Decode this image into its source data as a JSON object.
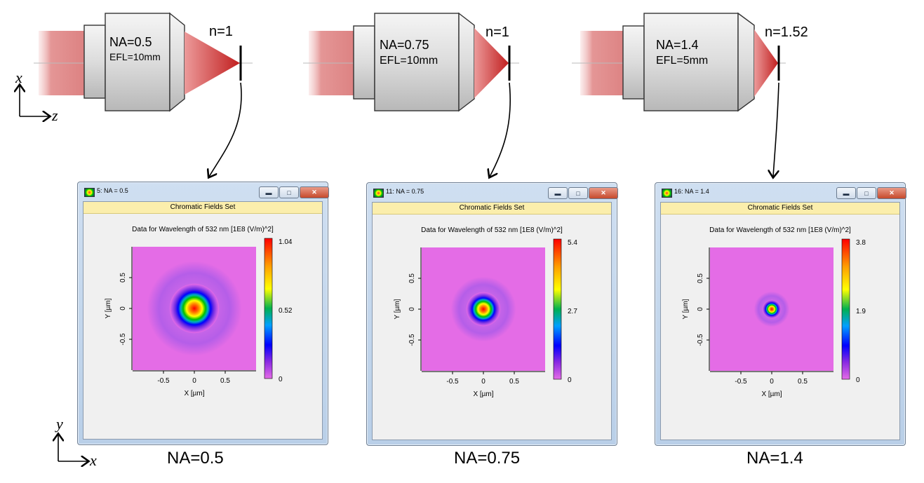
{
  "setups": [
    {
      "na": "NA=0.5",
      "efl": "EFL=10mm",
      "n": "n=1"
    },
    {
      "na": "NA=0.75",
      "efl": "EFL=10mm",
      "n": "n=1"
    },
    {
      "na": "NA=1.4",
      "efl": "EFL=5mm",
      "n": "n=1.52"
    }
  ],
  "axes_top": {
    "x": "x",
    "z": "z"
  },
  "axes_bottom": {
    "y": "y",
    "x": "x"
  },
  "windows": [
    {
      "title": "5: NA = 0.5",
      "header": "Chromatic Fields Set",
      "plot_title": "Data for Wavelength of 532 nm  [1E8 (V/m)^2]",
      "xlabel": "X [µm]",
      "ylabel": "Y [µm]",
      "xticks": [
        "-0.5",
        "0",
        "0.5"
      ],
      "yticks": [
        "0.5",
        "0",
        "-0.5"
      ],
      "colorbar": [
        "1.04",
        "0.52",
        "0"
      ],
      "bottom_label": "NA=0.5",
      "spot_radius_um": 0.32
    },
    {
      "title": "11: NA = 0.75",
      "header": "Chromatic Fields Set",
      "plot_title": "Data for Wavelength of 532 nm  [1E8 (V/m)^2]",
      "xlabel": "X [µm]",
      "ylabel": "Y [µm]",
      "xticks": [
        "-0.5",
        "0",
        "0.5"
      ],
      "yticks": [
        "0.5",
        "0",
        "-0.5"
      ],
      "colorbar": [
        "5.4",
        "2.7",
        "0"
      ],
      "bottom_label": "NA=0.75",
      "spot_radius_um": 0.22
    },
    {
      "title": "16: NA = 1.4",
      "header": "Chromatic Fields Set",
      "plot_title": "Data for Wavelength of 532 nm  [1E8 (V/m)^2]",
      "xlabel": "X [µm]",
      "ylabel": "Y [µm]",
      "xticks": [
        "-0.5",
        "0",
        "0.5"
      ],
      "yticks": [
        "0.5",
        "0",
        "-0.5"
      ],
      "colorbar": [
        "3.8",
        "1.9",
        "0"
      ],
      "bottom_label": "NA=1.4",
      "spot_radius_um": 0.12
    }
  ],
  "colors": {
    "beam": "#e08b8b",
    "cone": "#cc3a3a",
    "lens_body": "#d8d8d8",
    "background_field": "#e46ce6",
    "header_band": "#fbeeac"
  }
}
